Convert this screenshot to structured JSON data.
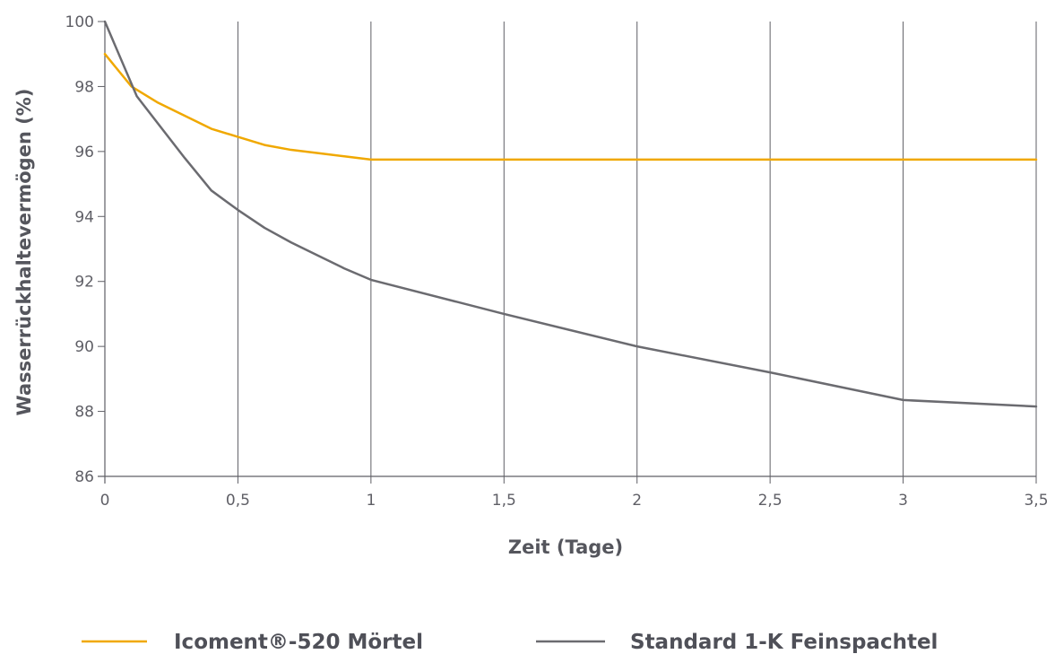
{
  "chart_data": {
    "type": "line",
    "xlabel": "Zeit (Tage)",
    "ylabel": "Wasserrückhaltevermögen (%)",
    "xlim": [
      0,
      3.5
    ],
    "ylim": [
      86,
      100
    ],
    "x_ticks": [
      0,
      0.5,
      1,
      1.5,
      2,
      2.5,
      3,
      3.5
    ],
    "x_tick_labels": [
      "0",
      "0,5",
      "1",
      "1,5",
      "2",
      "2,5",
      "3",
      "3,5"
    ],
    "y_ticks": [
      86,
      88,
      90,
      92,
      94,
      96,
      98,
      100
    ],
    "y_tick_labels": [
      "86",
      "88",
      "90",
      "92",
      "94",
      "96",
      "98",
      "100"
    ],
    "grid": "vertical",
    "legend_position": "bottom",
    "series": [
      {
        "name": "Icoment®-520 Mörtel",
        "color": "#f0a800",
        "points": [
          [
            0,
            99.0
          ],
          [
            0.1,
            98.0
          ],
          [
            0.2,
            97.5
          ],
          [
            0.3,
            97.1
          ],
          [
            0.4,
            96.7
          ],
          [
            0.5,
            96.45
          ],
          [
            0.6,
            96.2
          ],
          [
            0.7,
            96.05
          ],
          [
            0.8,
            95.95
          ],
          [
            0.9,
            95.85
          ],
          [
            1.0,
            95.75
          ],
          [
            1.5,
            95.75
          ],
          [
            2.0,
            95.75
          ],
          [
            2.5,
            95.75
          ],
          [
            3.0,
            95.75
          ],
          [
            3.5,
            95.75
          ]
        ]
      },
      {
        "name": "Standard 1-K Feinspachtel",
        "color": "#6b6b70",
        "points": [
          [
            0,
            100.0
          ],
          [
            0.12,
            97.7
          ],
          [
            0.3,
            95.8
          ],
          [
            0.4,
            94.8
          ],
          [
            0.5,
            94.2
          ],
          [
            0.6,
            93.65
          ],
          [
            0.7,
            93.2
          ],
          [
            0.8,
            92.8
          ],
          [
            0.9,
            92.4
          ],
          [
            1.0,
            92.05
          ],
          [
            1.5,
            91.0
          ],
          [
            2.0,
            90.0
          ],
          [
            2.5,
            89.2
          ],
          [
            3.0,
            88.35
          ],
          [
            3.5,
            88.15
          ]
        ]
      }
    ]
  },
  "colors": {
    "grid": "#5f5f66",
    "axis": "#5f5f66",
    "text": "#55565d"
  }
}
